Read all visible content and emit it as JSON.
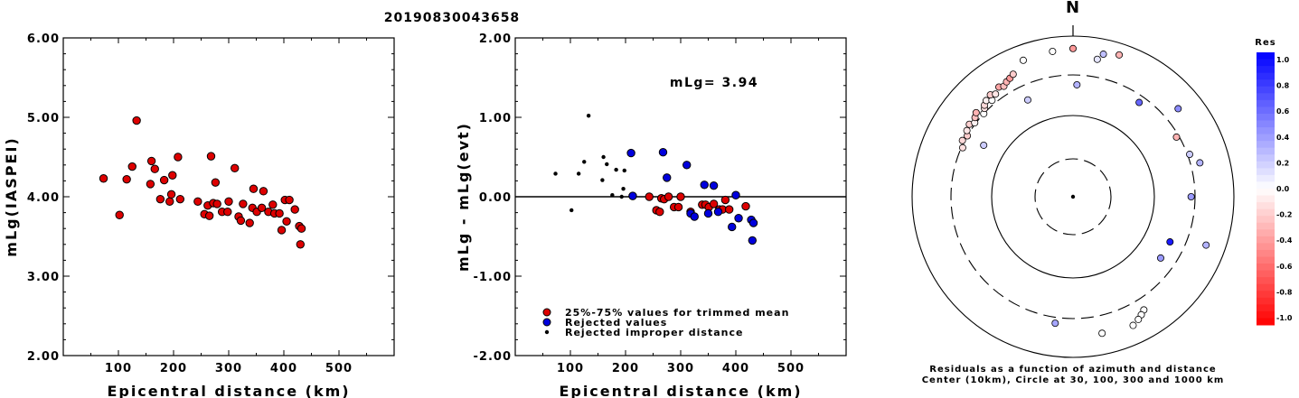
{
  "title": "20190830043658",
  "chart_data": [
    {
      "type": "scatter",
      "ylabel": "mLg(IASPEI)",
      "xlabel": "Epicentral distance (km)",
      "xlim": [
        0,
        600
      ],
      "ylim": [
        2.0,
        6.0
      ],
      "xticks": [
        100,
        200,
        300,
        400,
        500
      ],
      "yticks": [
        "2.00",
        "3.00",
        "4.00",
        "5.00",
        "6.00"
      ],
      "series": [
        {
          "color": "#dd0000",
          "points": [
            [
              73,
              4.23
            ],
            [
              102,
              3.77
            ],
            [
              115,
              4.22
            ],
            [
              125,
              4.38
            ],
            [
              133,
              4.96
            ],
            [
              158,
              4.16
            ],
            [
              160,
              4.45
            ],
            [
              166,
              4.35
            ],
            [
              176,
              3.97
            ],
            [
              183,
              4.21
            ],
            [
              193,
              3.94
            ],
            [
              196,
              4.03
            ],
            [
              198,
              4.27
            ],
            [
              208,
              4.5
            ],
            [
              212,
              3.97
            ],
            [
              244,
              3.94
            ],
            [
              256,
              3.78
            ],
            [
              262,
              3.89
            ],
            [
              265,
              3.76
            ],
            [
              268,
              4.51
            ],
            [
              272,
              3.92
            ],
            [
              276,
              4.18
            ],
            [
              279,
              3.91
            ],
            [
              288,
              3.81
            ],
            [
              298,
              3.81
            ],
            [
              300,
              3.94
            ],
            [
              311,
              4.36
            ],
            [
              318,
              3.75
            ],
            [
              322,
              3.7
            ],
            [
              326,
              3.91
            ],
            [
              338,
              3.67
            ],
            [
              343,
              3.86
            ],
            [
              345,
              4.1
            ],
            [
              351,
              3.81
            ],
            [
              360,
              3.86
            ],
            [
              363,
              4.07
            ],
            [
              372,
              3.81
            ],
            [
              380,
              3.9
            ],
            [
              383,
              3.79
            ],
            [
              392,
              3.79
            ],
            [
              396,
              3.58
            ],
            [
              402,
              3.96
            ],
            [
              405,
              3.69
            ],
            [
              410,
              3.96
            ],
            [
              420,
              3.84
            ],
            [
              428,
              3.63
            ],
            [
              430,
              3.4
            ],
            [
              432,
              3.6
            ]
          ]
        }
      ]
    },
    {
      "type": "scatter",
      "ylabel": "mLg - mLg(evt)",
      "xlabel": "Epicentral distance (km)",
      "xlim": [
        0,
        600
      ],
      "ylim": [
        -2.0,
        2.0
      ],
      "xticks": [
        100,
        200,
        300,
        400,
        500
      ],
      "yticks": [
        "-2.00",
        "-1.00",
        "0.00",
        "1.00",
        "2.00"
      ],
      "annotation": "mLg= 3.94",
      "legend": [
        {
          "label": "25%-75% values for trimmed mean",
          "color": "#dd0000",
          "marker": "circle"
        },
        {
          "label": "Rejected values",
          "color": "#0000dd",
          "marker": "circle"
        },
        {
          "label": "Rejected improper distance",
          "color": "#000000",
          "marker": "dot"
        }
      ],
      "series": [
        {
          "name": "25%-75% values for trimmed mean",
          "color": "#dd0000",
          "points": [
            [
              243,
              0.0
            ],
            [
              256,
              -0.17
            ],
            [
              262,
              -0.19
            ],
            [
              265,
              -0.02
            ],
            [
              270,
              -0.03
            ],
            [
              278,
              0.0
            ],
            [
              288,
              -0.13
            ],
            [
              296,
              -0.13
            ],
            [
              300,
              0.0
            ],
            [
              318,
              -0.19
            ],
            [
              339,
              -0.1
            ],
            [
              345,
              -0.1
            ],
            [
              351,
              -0.13
            ],
            [
              360,
              -0.09
            ],
            [
              370,
              -0.16
            ],
            [
              376,
              -0.16
            ],
            [
              381,
              -0.04
            ],
            [
              388,
              -0.16
            ],
            [
              418,
              -0.12
            ]
          ]
        },
        {
          "name": "Rejected values",
          "color": "#0000dd",
          "points": [
            [
              210,
              0.55
            ],
            [
              213,
              0.01
            ],
            [
              268,
              0.56
            ],
            [
              275,
              0.24
            ],
            [
              311,
              0.4
            ],
            [
              318,
              -0.21
            ],
            [
              325,
              -0.25
            ],
            [
              343,
              0.15
            ],
            [
              350,
              -0.21
            ],
            [
              360,
              0.14
            ],
            [
              368,
              -0.19
            ],
            [
              393,
              -0.38
            ],
            [
              400,
              0.02
            ],
            [
              405,
              -0.27
            ],
            [
              428,
              -0.29
            ],
            [
              432,
              -0.33
            ],
            [
              430,
              -0.55
            ]
          ]
        },
        {
          "name": "Rejected improper distance",
          "color": "#000000",
          "points": [
            [
              73,
              0.29
            ],
            [
              102,
              -0.17
            ],
            [
              115,
              0.29
            ],
            [
              125,
              0.44
            ],
            [
              133,
              1.02
            ],
            [
              158,
              0.21
            ],
            [
              160,
              0.5
            ],
            [
              166,
              0.41
            ],
            [
              176,
              0.02
            ],
            [
              183,
              0.34
            ],
            [
              193,
              0.0
            ],
            [
              196,
              0.1
            ],
            [
              198,
              0.33
            ]
          ]
        }
      ]
    },
    {
      "type": "polar",
      "north_label": "N",
      "caption_line1": "Residuals as a function of azimuth and distance",
      "caption_line2": "Center (10km), Circle at 30, 100, 300 and 1000 km",
      "colorbar_title": "Res",
      "colorbar_ticks": [
        "1.0",
        "0.8",
        "0.6",
        "0.4",
        "0.2",
        "0.0",
        "-0.2",
        "-0.4",
        "-0.6",
        "-0.8",
        "-1.0"
      ],
      "colorbar_range": [
        -1.0,
        1.0
      ],
      "rings_km": [
        30,
        100,
        300,
        1000
      ],
      "stations": [
        {
          "az": 294,
          "dist": 290,
          "res": -0.12
        },
        {
          "az": 297,
          "dist": 320,
          "res": -0.15
        },
        {
          "az": 300,
          "dist": 300,
          "res": -0.2
        },
        {
          "az": 302,
          "dist": 330,
          "res": -0.1
        },
        {
          "az": 305,
          "dist": 345,
          "res": -0.18
        },
        {
          "az": 307,
          "dist": 310,
          "res": -0.05
        },
        {
          "az": 309,
          "dist": 340,
          "res": -0.25
        },
        {
          "az": 311,
          "dist": 365,
          "res": -0.3
        },
        {
          "az": 313,
          "dist": 300,
          "res": 0.0
        },
        {
          "az": 315,
          "dist": 330,
          "res": -0.1
        },
        {
          "az": 316,
          "dist": 355,
          "res": -0.15
        },
        {
          "az": 318,
          "dist": 380,
          "res": -0.05
        },
        {
          "az": 320,
          "dist": 340,
          "res": 0.0
        },
        {
          "az": 321,
          "dist": 400,
          "res": -0.2
        },
        {
          "az": 323,
          "dist": 370,
          "res": -0.1
        },
        {
          "az": 326,
          "dist": 415,
          "res": -0.35
        },
        {
          "az": 328,
          "dist": 390,
          "res": -0.25
        },
        {
          "az": 330,
          "dist": 420,
          "res": -0.3
        },
        {
          "az": 332,
          "dist": 440,
          "res": -0.4
        },
        {
          "az": 334,
          "dist": 470,
          "res": -0.2
        },
        {
          "az": 300,
          "dist": 180,
          "res": 0.2
        },
        {
          "az": 335,
          "dist": 200,
          "res": 0.2
        },
        {
          "az": 340,
          "dist": 620,
          "res": 0.0
        },
        {
          "az": 352,
          "dist": 650,
          "res": 0.0
        },
        {
          "az": 0,
          "dist": 680,
          "res": -0.4
        },
        {
          "az": 12,
          "dist": 630,
          "res": 0.25
        },
        {
          "az": 18,
          "dist": 700,
          "res": -0.3
        },
        {
          "az": 10,
          "dist": 520,
          "res": 0.1
        },
        {
          "az": 2,
          "dist": 230,
          "res": 0.3
        },
        {
          "az": 35,
          "dist": 250,
          "res": 0.6
        },
        {
          "az": 50,
          "dist": 480,
          "res": 0.45
        },
        {
          "az": 60,
          "dist": 280,
          "res": -0.3
        },
        {
          "az": 70,
          "dist": 320,
          "res": 0.2
        },
        {
          "az": 75,
          "dist": 400,
          "res": 0.3
        },
        {
          "az": 90,
          "dist": 270,
          "res": 0.4
        },
        {
          "az": 115,
          "dist": 200,
          "res": 0.9
        },
        {
          "az": 125,
          "dist": 200,
          "res": 0.4
        },
        {
          "az": 110,
          "dist": 550,
          "res": 0.3
        },
        {
          "az": 148,
          "dist": 430,
          "res": 0.0
        },
        {
          "az": 150,
          "dist": 470,
          "res": 0.0
        },
        {
          "az": 152,
          "dist": 510,
          "res": 0.0
        },
        {
          "az": 155,
          "dist": 560,
          "res": 0.0
        },
        {
          "az": 168,
          "dist": 520,
          "res": 0.0
        },
        {
          "az": 188,
          "dist": 360,
          "res": 0.35
        }
      ]
    }
  ]
}
